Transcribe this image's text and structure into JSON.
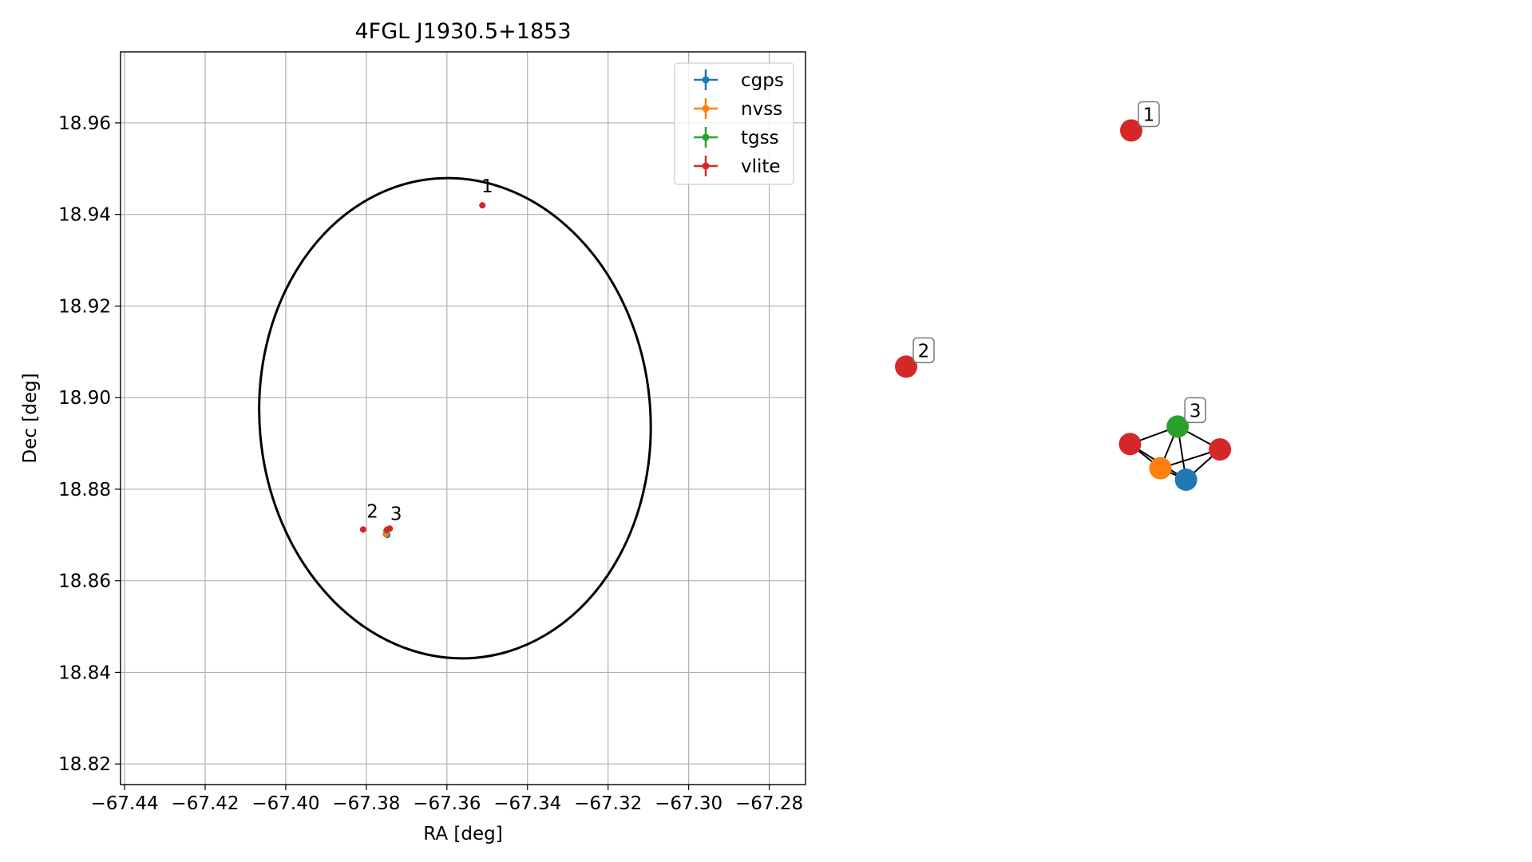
{
  "chart_data": [
    {
      "type": "scatter",
      "title": "4FGL J1930.5+1853",
      "xlabel": "RA [deg]",
      "ylabel": "Dec [deg]",
      "xlim": [
        -67.441,
        -67.271
      ],
      "ylim": [
        18.8155,
        18.9755
      ],
      "xticks": [
        -67.44,
        -67.42,
        -67.4,
        -67.38,
        -67.36,
        -67.34,
        -67.32,
        -67.3,
        -67.28
      ],
      "xtick_labels": [
        "−67.44",
        "−67.42",
        "−67.40",
        "−67.38",
        "−67.36",
        "−67.34",
        "−67.32",
        "−67.30",
        "−67.28"
      ],
      "yticks": [
        18.82,
        18.84,
        18.86,
        18.88,
        18.9,
        18.92,
        18.94,
        18.96
      ],
      "ytick_labels": [
        "18.82",
        "18.84",
        "18.86",
        "18.88",
        "18.90",
        "18.92",
        "18.94",
        "18.96"
      ],
      "grid": true,
      "legend_position": "top-right",
      "series": [
        {
          "name": "cgps",
          "color": "#1f77b4",
          "marker": "plus-errorbar",
          "points": [
            {
              "x": -67.3748,
              "y": 18.87
            }
          ]
        },
        {
          "name": "nvss",
          "color": "#ff7f0e",
          "marker": "plus-errorbar",
          "points": [
            {
              "x": -67.3752,
              "y": 18.8702
            }
          ]
        },
        {
          "name": "tgss",
          "color": "#2ca02c",
          "marker": "plus-errorbar",
          "points": [
            {
              "x": -67.375,
              "y": 18.871
            }
          ]
        },
        {
          "name": "vlite",
          "color": "#d62728",
          "marker": "plus-errorbar",
          "points": [
            {
              "x": -67.3512,
              "y": 18.942
            },
            {
              "x": -67.3808,
              "y": 18.8712
            },
            {
              "x": -67.3748,
              "y": 18.8712
            },
            {
              "x": -67.3742,
              "y": 18.8714
            }
          ]
        }
      ],
      "error_ellipse": {
        "center": [
          -67.358,
          18.8955
        ],
        "semi_axes": [
          0.0485,
          0.0525
        ],
        "color": "#000000"
      },
      "annotations": [
        {
          "text": "1",
          "x": -67.35,
          "y": 18.9448
        },
        {
          "text": "2",
          "x": -67.3785,
          "y": 18.8738
        },
        {
          "text": "3",
          "x": -67.3726,
          "y": 18.8733
        }
      ]
    },
    {
      "type": "graph",
      "nodes": [
        {
          "id": "n1",
          "color": "#d62728",
          "x": 0.378,
          "y": 0.933
        },
        {
          "id": "n2",
          "color": "#d62728",
          "x": 0.0,
          "y": 0.582
        },
        {
          "id": "n3a",
          "color": "#d62728",
          "x": 0.376,
          "y": 0.467
        },
        {
          "id": "n3b",
          "color": "#2ca02c",
          "x": 0.456,
          "y": 0.493
        },
        {
          "id": "n3c",
          "color": "#d62728",
          "x": 0.527,
          "y": 0.459
        },
        {
          "id": "n3d",
          "color": "#ff7f0e",
          "x": 0.427,
          "y": 0.431
        },
        {
          "id": "n3e",
          "color": "#1f77b4",
          "x": 0.47,
          "y": 0.414
        }
      ],
      "edges": [
        [
          "n3a",
          "n3b"
        ],
        [
          "n3a",
          "n3d"
        ],
        [
          "n3a",
          "n3e"
        ],
        [
          "n3b",
          "n3d"
        ],
        [
          "n3b",
          "n3e"
        ],
        [
          "n3b",
          "n3c"
        ],
        [
          "n3c",
          "n3d"
        ],
        [
          "n3c",
          "n3e"
        ],
        [
          "n3d",
          "n3e"
        ]
      ],
      "labels": [
        {
          "text": "1",
          "node": "n1"
        },
        {
          "text": "2",
          "node": "n2"
        },
        {
          "text": "3",
          "node": "n3b"
        }
      ]
    }
  ]
}
